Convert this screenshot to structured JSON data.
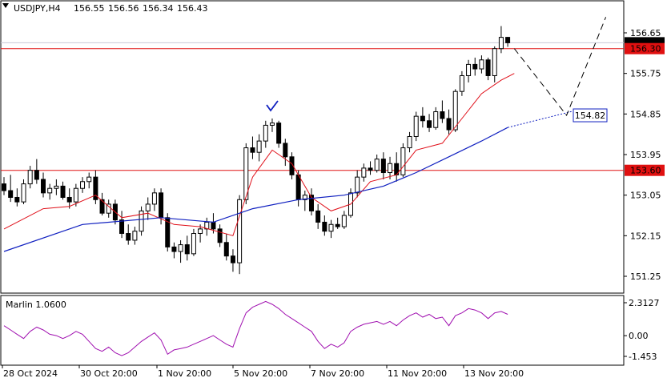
{
  "header": {
    "symbol": "USDJPY,H4",
    "open": "156.55",
    "high": "156.56",
    "low": "156.34",
    "close": "156.43"
  },
  "colors": {
    "bull_body": "#ffffff",
    "bear_body": "#000000",
    "fast_ma": "#e0101a",
    "slow_ma": "#1020c0",
    "level_line": "#e01010",
    "oscillator": "#a010b0",
    "check": "#1020c0",
    "forecast": "#000000",
    "price_label_bg": "#e01010",
    "target_box": "#1020c0"
  },
  "indicator": {
    "label": "Marlin 1.0600",
    "ticks": [
      "2.3127",
      "0.00",
      "-1.453"
    ]
  },
  "chart_data": {
    "type": "candlestick",
    "symbol": "USDJPY",
    "timeframe": "H4",
    "y_ticks": [
      "156.65",
      "155.75",
      "154.85",
      "153.95",
      "153.05",
      "152.15",
      "151.25"
    ],
    "ylim": [
      150.85,
      157.1
    ],
    "x_labels": [
      "28 Oct 2024",
      "30 Oct 20:00",
      "1 Nov 20:00",
      "5 Nov 20:00",
      "7 Nov 20:00",
      "11 Nov 20:00",
      "13 Nov 20:00"
    ],
    "current_price": "156.43",
    "levels": [
      {
        "value": 156.3,
        "label": "156.30"
      },
      {
        "value": 153.6,
        "label": "153.60"
      }
    ],
    "target": {
      "value": 154.82,
      "label": "154.82"
    },
    "candles": [
      [
        153.3,
        153.45,
        153.05,
        153.15
      ],
      [
        153.15,
        153.5,
        152.9,
        153.0
      ],
      [
        153.0,
        153.2,
        152.8,
        152.9
      ],
      [
        152.9,
        153.4,
        152.85,
        153.3
      ],
      [
        153.3,
        153.7,
        153.2,
        153.6
      ],
      [
        153.6,
        153.85,
        153.3,
        153.4
      ],
      [
        153.4,
        153.55,
        153.0,
        153.1
      ],
      [
        153.1,
        153.3,
        152.95,
        153.2
      ],
      [
        153.2,
        153.4,
        153.05,
        153.25
      ],
      [
        153.25,
        153.35,
        152.95,
        153.0
      ],
      [
        153.0,
        153.2,
        152.75,
        152.9
      ],
      [
        152.9,
        153.3,
        152.8,
        153.2
      ],
      [
        153.2,
        153.45,
        153.1,
        153.35
      ],
      [
        153.35,
        153.55,
        153.2,
        153.45
      ],
      [
        153.45,
        153.6,
        152.85,
        152.95
      ],
      [
        152.95,
        153.1,
        152.6,
        152.65
      ],
      [
        152.65,
        152.95,
        152.55,
        152.85
      ],
      [
        152.85,
        152.95,
        152.4,
        152.5
      ],
      [
        152.5,
        152.7,
        152.1,
        152.2
      ],
      [
        152.2,
        152.4,
        151.95,
        152.05
      ],
      [
        152.05,
        152.35,
        151.95,
        152.25
      ],
      [
        152.25,
        152.8,
        152.15,
        152.7
      ],
      [
        152.7,
        153.0,
        152.5,
        152.85
      ],
      [
        152.85,
        153.2,
        152.7,
        153.1
      ],
      [
        153.1,
        153.2,
        152.4,
        152.55
      ],
      [
        152.55,
        152.65,
        151.8,
        151.9
      ],
      [
        151.9,
        152.0,
        151.65,
        151.8
      ],
      [
        151.8,
        152.05,
        151.55,
        151.95
      ],
      [
        151.95,
        152.15,
        151.6,
        151.75
      ],
      [
        151.75,
        152.3,
        151.7,
        152.2
      ],
      [
        152.2,
        152.4,
        152.0,
        152.3
      ],
      [
        152.3,
        152.55,
        152.15,
        152.45
      ],
      [
        152.45,
        152.65,
        152.2,
        152.3
      ],
      [
        152.3,
        152.4,
        151.9,
        152.0
      ],
      [
        152.0,
        152.2,
        151.6,
        151.7
      ],
      [
        151.7,
        151.85,
        151.35,
        151.55
      ],
      [
        151.55,
        153.05,
        151.3,
        152.95
      ],
      [
        152.95,
        154.2,
        152.85,
        154.1
      ],
      [
        154.1,
        154.35,
        153.85,
        154.0
      ],
      [
        154.0,
        154.4,
        153.8,
        154.25
      ],
      [
        154.25,
        154.7,
        154.1,
        154.6
      ],
      [
        154.6,
        154.75,
        154.45,
        154.65
      ],
      [
        154.65,
        154.7,
        154.1,
        154.2
      ],
      [
        154.2,
        154.3,
        153.7,
        153.9
      ],
      [
        153.9,
        154.0,
        153.4,
        153.5
      ],
      [
        153.5,
        153.6,
        152.8,
        152.95
      ],
      [
        152.95,
        153.15,
        152.7,
        153.05
      ],
      [
        153.05,
        153.2,
        152.6,
        152.7
      ],
      [
        152.7,
        152.85,
        152.3,
        152.45
      ],
      [
        152.45,
        152.6,
        152.15,
        152.25
      ],
      [
        152.25,
        152.5,
        152.1,
        152.4
      ],
      [
        152.4,
        152.55,
        152.3,
        152.35
      ],
      [
        152.35,
        152.7,
        152.3,
        152.6
      ],
      [
        152.6,
        153.2,
        152.55,
        153.1
      ],
      [
        153.1,
        153.6,
        153.0,
        153.45
      ],
      [
        153.45,
        153.75,
        153.35,
        153.65
      ],
      [
        153.65,
        153.8,
        153.5,
        153.6
      ],
      [
        153.6,
        153.95,
        153.55,
        153.85
      ],
      [
        153.85,
        154.0,
        153.4,
        153.55
      ],
      [
        153.55,
        153.9,
        153.4,
        153.75
      ],
      [
        153.75,
        154.0,
        153.35,
        153.5
      ],
      [
        153.5,
        154.2,
        153.45,
        154.1
      ],
      [
        154.1,
        154.45,
        154.0,
        154.35
      ],
      [
        154.35,
        154.9,
        154.25,
        154.8
      ],
      [
        154.8,
        155.0,
        154.55,
        154.7
      ],
      [
        154.7,
        154.85,
        154.45,
        154.55
      ],
      [
        154.55,
        155.0,
        154.5,
        154.9
      ],
      [
        154.9,
        155.15,
        154.65,
        154.75
      ],
      [
        154.75,
        154.95,
        154.4,
        154.5
      ],
      [
        154.5,
        155.4,
        154.45,
        155.35
      ],
      [
        155.35,
        155.8,
        155.25,
        155.7
      ],
      [
        155.7,
        156.05,
        155.55,
        155.95
      ],
      [
        155.95,
        156.1,
        155.7,
        155.85
      ],
      [
        155.85,
        156.15,
        155.75,
        156.05
      ],
      [
        156.05,
        156.1,
        155.6,
        155.7
      ],
      [
        155.7,
        156.35,
        155.55,
        156.3
      ],
      [
        156.3,
        156.8,
        156.2,
        156.55
      ],
      [
        156.55,
        156.56,
        156.34,
        156.43
      ]
    ],
    "ma_fast": [
      {
        "i": 0,
        "v": 152.3
      },
      {
        "i": 6,
        "v": 152.75
      },
      {
        "i": 10,
        "v": 152.8
      },
      {
        "i": 14,
        "v": 153.05
      },
      {
        "i": 18,
        "v": 152.55
      },
      {
        "i": 22,
        "v": 152.65
      },
      {
        "i": 26,
        "v": 152.4
      },
      {
        "i": 30,
        "v": 152.35
      },
      {
        "i": 35,
        "v": 152.15
      },
      {
        "i": 38,
        "v": 153.45
      },
      {
        "i": 41,
        "v": 154.05
      },
      {
        "i": 44,
        "v": 153.75
      },
      {
        "i": 47,
        "v": 153.0
      },
      {
        "i": 50,
        "v": 152.7
      },
      {
        "i": 53,
        "v": 152.85
      },
      {
        "i": 56,
        "v": 153.35
      },
      {
        "i": 60,
        "v": 153.5
      },
      {
        "i": 63,
        "v": 154.05
      },
      {
        "i": 67,
        "v": 154.2
      },
      {
        "i": 70,
        "v": 154.75
      },
      {
        "i": 73,
        "v": 155.3
      },
      {
        "i": 76,
        "v": 155.6
      },
      {
        "i": 78,
        "v": 155.75
      }
    ],
    "ma_slow": [
      {
        "i": 0,
        "v": 151.8
      },
      {
        "i": 12,
        "v": 152.4
      },
      {
        "i": 24,
        "v": 152.55
      },
      {
        "i": 32,
        "v": 152.45
      },
      {
        "i": 38,
        "v": 152.75
      },
      {
        "i": 45,
        "v": 152.95
      },
      {
        "i": 52,
        "v": 153.05
      },
      {
        "i": 58,
        "v": 153.25
      },
      {
        "i": 63,
        "v": 153.55
      },
      {
        "i": 68,
        "v": 153.9
      },
      {
        "i": 73,
        "v": 154.25
      },
      {
        "i": 77,
        "v": 154.55
      }
    ],
    "ma_slow_projection": [
      {
        "i": 77,
        "v": 154.55
      },
      {
        "i": 88,
        "v": 154.95
      }
    ],
    "forecast_path": [
      {
        "i": 78,
        "v": 156.3
      },
      {
        "i": 86,
        "v": 154.82
      },
      {
        "i": 92,
        "v": 157.0
      }
    ],
    "oscillator": [
      0.7,
      0.4,
      0.1,
      -0.2,
      0.3,
      0.6,
      0.4,
      0.1,
      0.0,
      -0.2,
      0.0,
      0.3,
      0.1,
      -0.4,
      -0.9,
      -1.1,
      -0.8,
      -1.2,
      -1.4,
      -1.2,
      -0.8,
      -0.4,
      -0.1,
      0.2,
      -0.3,
      -1.3,
      -1.0,
      -0.9,
      -0.8,
      -0.6,
      -0.4,
      -0.2,
      0.0,
      -0.3,
      -0.6,
      -0.8,
      0.5,
      1.6,
      2.0,
      2.2,
      2.4,
      2.2,
      1.9,
      1.5,
      1.2,
      0.9,
      0.6,
      0.3,
      -0.4,
      -0.9,
      -0.6,
      -0.8,
      -0.5,
      0.3,
      0.6,
      0.8,
      0.9,
      1.0,
      0.8,
      1.0,
      0.7,
      1.1,
      1.4,
      1.6,
      1.3,
      1.5,
      1.2,
      1.3,
      0.7,
      1.4,
      1.6,
      1.9,
      1.8,
      1.6,
      1.2,
      1.6,
      1.7,
      1.5
    ],
    "oscillator_range": [
      -1.453,
      2.3127
    ]
  }
}
